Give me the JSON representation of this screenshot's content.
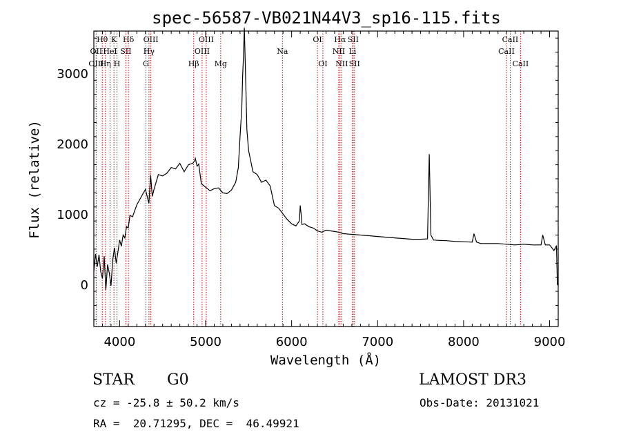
{
  "chart_data": {
    "type": "line",
    "title": "spec-56587-VB021N44V3_sp16-115.fits",
    "xlabel": "Wavelength (Å)",
    "ylabel": "Flux (relative)",
    "xlim": [
      3700,
      9100
    ],
    "ylim": [
      -600,
      3600
    ],
    "xticks": [
      4000,
      5000,
      6000,
      7000,
      8000,
      9000
    ],
    "yticks": [
      0,
      1000,
      2000,
      3000
    ],
    "grid": false,
    "series": [
      {
        "color": "#000000",
        "x": [
          3700,
          3720,
          3740,
          3760,
          3780,
          3800,
          3820,
          3840,
          3860,
          3880,
          3900,
          3920,
          3940,
          3960,
          3980,
          4000,
          4020,
          4040,
          4060,
          4080,
          4100,
          4120,
          4150,
          4200,
          4250,
          4300,
          4340,
          4360,
          4380,
          4400,
          4450,
          4500,
          4550,
          4600,
          4650,
          4700,
          4750,
          4800,
          4850,
          4870,
          4880,
          4900,
          4920,
          4950,
          5000,
          5050,
          5100,
          5150,
          5200,
          5250,
          5300,
          5350,
          5380,
          5400,
          5420,
          5430,
          5440,
          5450,
          5460,
          5470,
          5480,
          5500,
          5550,
          5600,
          5650,
          5700,
          5750,
          5800,
          5850,
          5900,
          5950,
          6000,
          6050,
          6090,
          6100,
          6110,
          6120,
          6150,
          6200,
          6250,
          6300,
          6350,
          6400,
          6450,
          6500,
          6550,
          6600,
          6700,
          6800,
          6900,
          7000,
          7100,
          7200,
          7300,
          7400,
          7500,
          7580,
          7600,
          7620,
          7650,
          7700,
          7800,
          7900,
          8000,
          8100,
          8120,
          8150,
          8200,
          8300,
          8400,
          8500,
          8600,
          8700,
          8800,
          8900,
          8920,
          8950,
          9000,
          9050,
          9080,
          9090,
          9100
        ],
        "y": [
          180,
          430,
          250,
          420,
          180,
          80,
          400,
          -80,
          280,
          160,
          -20,
          350,
          520,
          300,
          460,
          630,
          540,
          700,
          660,
          820,
          800,
          980,
          960,
          1130,
          1240,
          1350,
          1150,
          1550,
          1250,
          1350,
          1560,
          1540,
          1580,
          1660,
          1640,
          1720,
          1600,
          1700,
          1720,
          1750,
          1790,
          1680,
          1710,
          1430,
          1380,
          1330,
          1360,
          1370,
          1300,
          1290,
          1340,
          1450,
          1660,
          2100,
          2500,
          2950,
          3250,
          3650,
          3200,
          2700,
          2200,
          1900,
          1600,
          1560,
          1450,
          1480,
          1400,
          1120,
          1080,
          1000,
          920,
          860,
          830,
          900,
          1120,
          1000,
          850,
          860,
          820,
          800,
          760,
          740,
          770,
          760,
          750,
          740,
          720,
          710,
          700,
          690,
          680,
          670,
          660,
          650,
          640,
          640,
          645,
          1850,
          700,
          630,
          625,
          620,
          610,
          605,
          600,
          720,
          600,
          580,
          580,
          580,
          570,
          560,
          570,
          560,
          560,
          700,
          560,
          560,
          480,
          550,
          -10,
          30
        ]
      }
    ],
    "line_labels": [
      {
        "label": "Hθ",
        "x": 3798,
        "row": 0
      },
      {
        "label": "Hη",
        "x": 3835,
        "row": 2
      },
      {
        "label": "OII",
        "x": 3727,
        "row": 1
      },
      {
        "label": "OIII",
        "x": 3727,
        "row": 2
      },
      {
        "label": "HeI",
        "x": 3889,
        "row": 1
      },
      {
        "label": "K",
        "x": 3934,
        "row": 0
      },
      {
        "label": "H",
        "x": 3969,
        "row": 2
      },
      {
        "label": "SII",
        "x": 4072,
        "row": 1
      },
      {
        "label": "Hδ",
        "x": 4102,
        "row": 0
      },
      {
        "label": "G",
        "x": 4305,
        "row": 2
      },
      {
        "label": "OIII",
        "x": 4363,
        "row": 0
      },
      {
        "label": "Hγ",
        "x": 4341,
        "row": 1
      },
      {
        "label": "Hβ",
        "x": 4861,
        "row": 2
      },
      {
        "label": "OIII",
        "x": 4959,
        "row": 1
      },
      {
        "label": "OIII",
        "x": 5007,
        "row": 0
      },
      {
        "label": "Mg",
        "x": 5175,
        "row": 2
      },
      {
        "label": "Na",
        "x": 5893,
        "row": 1
      },
      {
        "label": "OI",
        "x": 6300,
        "row": 0
      },
      {
        "label": "OI",
        "x": 6363,
        "row": 2
      },
      {
        "label": "Hα",
        "x": 6563,
        "row": 0
      },
      {
        "label": "NII",
        "x": 6548,
        "row": 1
      },
      {
        "label": "NII",
        "x": 6583,
        "row": 2
      },
      {
        "label": "Li",
        "x": 6708,
        "row": 1
      },
      {
        "label": "SII",
        "x": 6716,
        "row": 0
      },
      {
        "label": "SII",
        "x": 6731,
        "row": 2
      },
      {
        "label": "CaII",
        "x": 8498,
        "row": 1
      },
      {
        "label": "CaII",
        "x": 8542,
        "row": 0
      },
      {
        "label": "CaII",
        "x": 8662,
        "row": 2
      }
    ],
    "marker_lines": [
      3727,
      3798,
      3835,
      3889,
      3934,
      3969,
      4072,
      4102,
      4305,
      4341,
      4363,
      4861,
      4959,
      5007,
      5175,
      5893,
      6300,
      6363,
      6548,
      6563,
      6583,
      6708,
      6716,
      6731,
      8498,
      8542,
      8662
    ],
    "marker_color": "#cc0000"
  },
  "info": {
    "object_class": "STAR",
    "subclass": "G0",
    "survey": "LAMOST DR3",
    "redshift": "cz = -25.8 ± 50.2 km/s",
    "obs_date": "Obs-Date: 20131021",
    "coords": "RA =  20.71295, DEC =  46.49921"
  }
}
